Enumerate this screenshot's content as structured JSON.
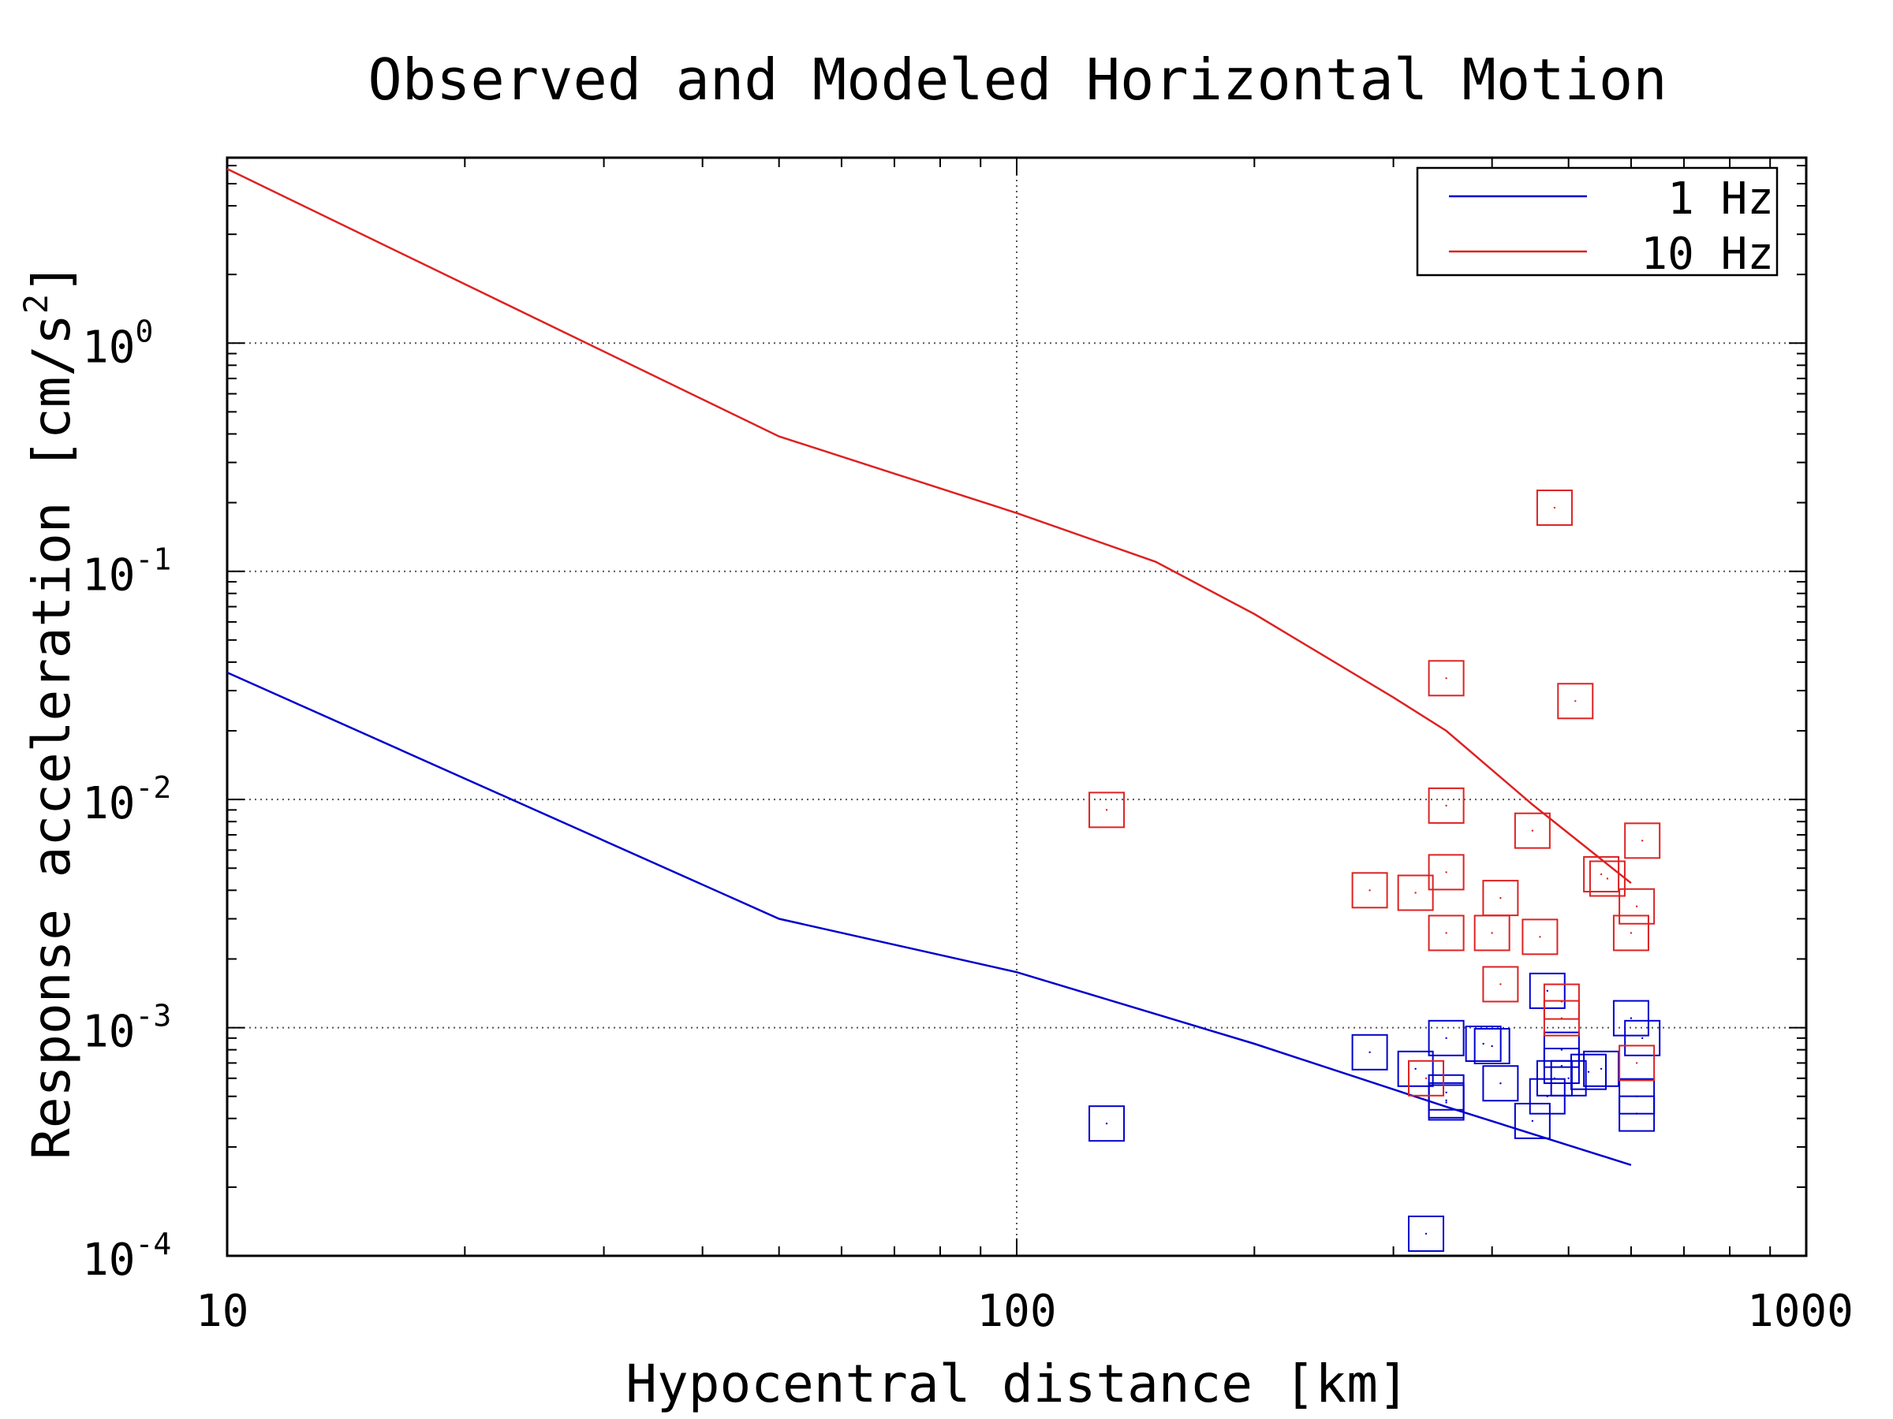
{
  "chart_data": {
    "type": "scatter",
    "title": "Observed and Modeled Horizontal Motion",
    "xlabel": "Hypocentral distance [km]",
    "ylabel_text": "Response acceleration [cm/s",
    "ylabel_sup": "2",
    "ylabel_end": "]",
    "x_scale": "log",
    "y_scale": "log",
    "xlim": [
      10,
      1000
    ],
    "ylim": [
      0.0001,
      6.5
    ],
    "grid": true,
    "legend_position": "top-right",
    "x_ticks": [
      {
        "value": 10,
        "label": "10"
      },
      {
        "value": 100,
        "label": "100"
      },
      {
        "value": 1000,
        "label": "1000"
      }
    ],
    "y_ticks": [
      {
        "value": 0.0001,
        "base": "10",
        "exp": "-4"
      },
      {
        "value": 0.001,
        "base": "10",
        "exp": "-3"
      },
      {
        "value": 0.01,
        "base": "10",
        "exp": "-2"
      },
      {
        "value": 0.1,
        "base": "10",
        "exp": "-1"
      },
      {
        "value": 1,
        "base": "10",
        "exp": "0"
      }
    ],
    "series": [
      {
        "name": "1 Hz",
        "color": "#0000cc",
        "line": [
          [
            10,
            0.036
          ],
          [
            50,
            0.003
          ],
          [
            100,
            0.00175
          ],
          [
            200,
            0.00085
          ],
          [
            350,
            0.00045
          ],
          [
            600,
            0.00025
          ]
        ],
        "observed": [
          [
            130,
            0.00038
          ],
          [
            280,
            0.00078
          ],
          [
            320,
            0.00066
          ],
          [
            330,
            0.000125
          ],
          [
            350,
            0.0009
          ],
          [
            350,
            0.00052
          ],
          [
            350,
            0.00047
          ],
          [
            350,
            0.00048
          ],
          [
            390,
            0.00085
          ],
          [
            400,
            0.00083
          ],
          [
            410,
            0.00057
          ],
          [
            450,
            0.00039
          ],
          [
            470,
            0.00145
          ],
          [
            470,
            0.0005
          ],
          [
            490,
            0.0008
          ],
          [
            490,
            0.00068
          ],
          [
            500,
            0.0006
          ],
          [
            530,
            0.00064
          ],
          [
            550,
            0.00066
          ],
          [
            600,
            0.0011
          ],
          [
            610,
            0.0005
          ],
          [
            610,
            0.00042
          ],
          [
            620,
            0.0009
          ],
          [
            480,
            0.0006
          ]
        ]
      },
      {
        "name": "10 Hz",
        "color": "#dd2222",
        "line": [
          [
            10,
            5.8
          ],
          [
            50,
            0.39
          ],
          [
            100,
            0.18
          ],
          [
            150,
            0.11
          ],
          [
            200,
            0.065
          ],
          [
            300,
            0.028
          ],
          [
            350,
            0.02
          ],
          [
            450,
            0.0095
          ],
          [
            600,
            0.0043
          ]
        ],
        "observed": [
          [
            130,
            0.009
          ],
          [
            280,
            0.004
          ],
          [
            320,
            0.0039
          ],
          [
            330,
            0.0006
          ],
          [
            350,
            0.034
          ],
          [
            350,
            0.0094
          ],
          [
            350,
            0.0048
          ],
          [
            350,
            0.0026
          ],
          [
            400,
            0.0026
          ],
          [
            410,
            0.0037
          ],
          [
            410,
            0.00155
          ],
          [
            450,
            0.0073
          ],
          [
            460,
            0.0025
          ],
          [
            480,
            0.19
          ],
          [
            490,
            0.0013
          ],
          [
            490,
            0.0011
          ],
          [
            510,
            0.027
          ],
          [
            550,
            0.0047
          ],
          [
            560,
            0.0045
          ],
          [
            600,
            0.0026
          ],
          [
            610,
            0.0034
          ],
          [
            620,
            0.0066
          ],
          [
            610,
            0.0007
          ]
        ]
      }
    ]
  }
}
